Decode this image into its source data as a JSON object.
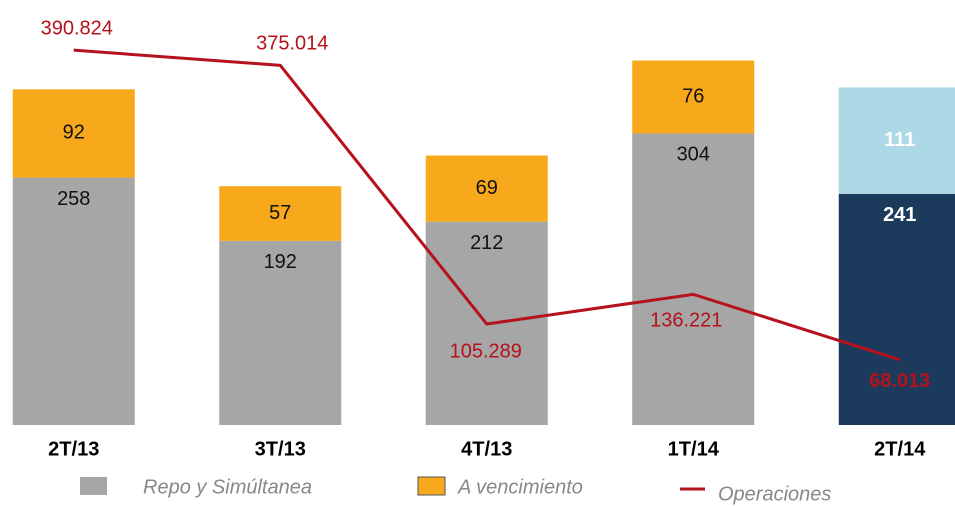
{
  "chart_data": {
    "type": "bar",
    "categories": [
      "2T/13",
      "3T/13",
      "4T/13",
      "1T/14",
      "2T/14"
    ],
    "series": [
      {
        "name": "Repo y Simúltanea",
        "color": "#a6a6a6",
        "values": [
          258,
          192,
          212,
          304,
          241
        ],
        "colors": [
          "#a6a6a6",
          "#a6a6a6",
          "#a6a6a6",
          "#a6a6a6",
          "#1b3a5c"
        ]
      },
      {
        "name": "A vencimiento",
        "color": "#f7a81b",
        "values": [
          92,
          57,
          69,
          76,
          111
        ],
        "colors": [
          "#f7a81b",
          "#f7a81b",
          "#f7a81b",
          "#f7a81b",
          "#add8e6"
        ]
      },
      {
        "name": "Operaciones",
        "type": "line",
        "axis": "y2",
        "color": "#b5121b",
        "values": [
          390.824,
          375.014,
          105.289,
          136.221,
          68.013
        ]
      }
    ],
    "ylim": [
      0,
      440
    ],
    "y2lim": [
      0,
      440
    ]
  }
}
